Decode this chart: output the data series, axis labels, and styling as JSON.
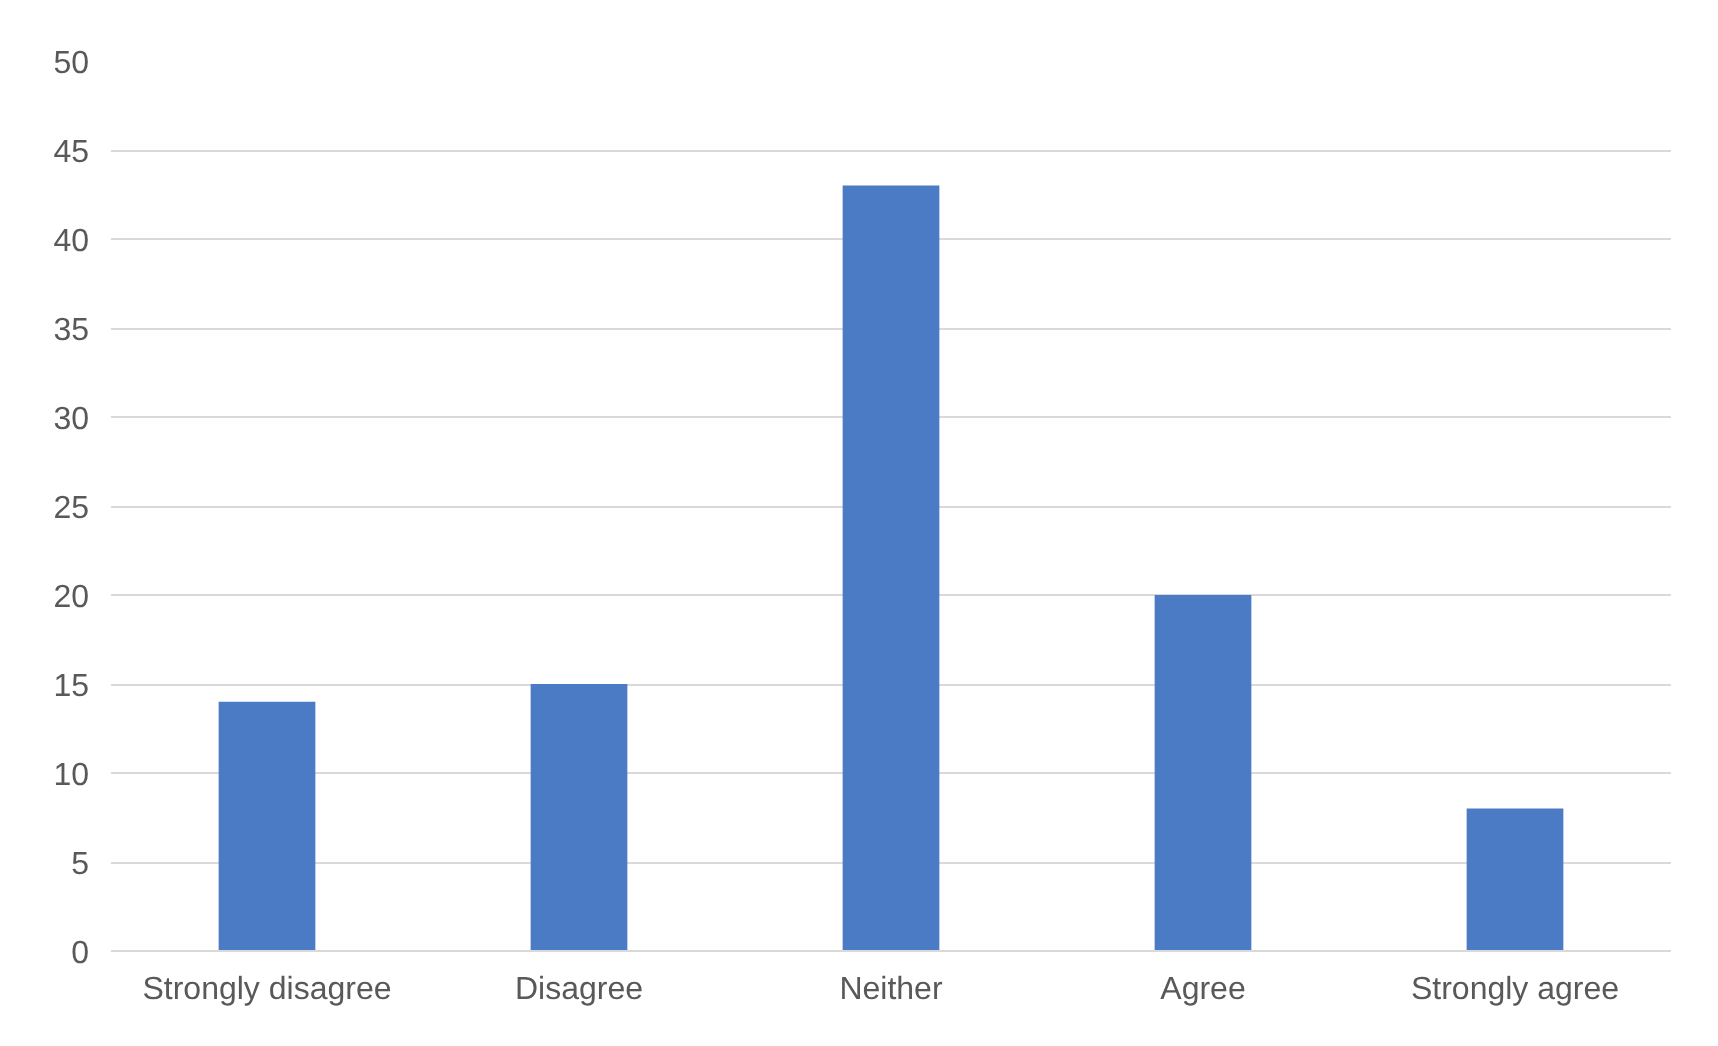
{
  "chart_data": {
    "type": "bar",
    "categories": [
      "Strongly disagree",
      "Disagree",
      "Neither",
      "Agree",
      "Strongly agree"
    ],
    "values": [
      14,
      15,
      43,
      20,
      8
    ],
    "color": "#4a7bc4",
    "ylim": [
      0,
      50
    ],
    "yticks": [
      0,
      5,
      10,
      15,
      20,
      25,
      30,
      35,
      40,
      45,
      50
    ],
    "grid": "y"
  }
}
